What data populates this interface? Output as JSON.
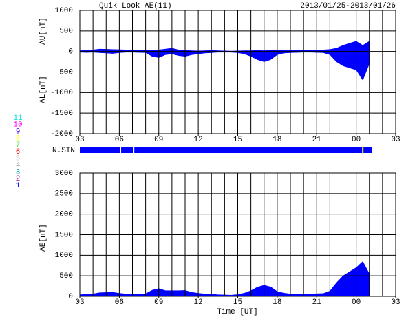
{
  "chart_data": [
    {
      "type": "area",
      "title": "Quik Look AE(11)",
      "subtitle": "2013/01/25-2013/01/26",
      "y_labels": [
        "AU[nT]",
        "AL[nT]"
      ],
      "x": [
        3,
        3.5,
        4,
        4.5,
        5,
        5.5,
        6,
        6.5,
        7,
        7.5,
        8,
        8.5,
        9,
        9.5,
        10,
        10.5,
        11,
        11.5,
        12,
        12.5,
        13,
        13.5,
        14,
        14.5,
        15,
        15.5,
        16,
        16.5,
        17,
        17.5,
        18,
        18.5,
        19,
        19.5,
        20,
        20.5,
        21,
        21.5,
        22,
        22.5,
        23,
        23.5,
        24,
        24.5,
        25
      ],
      "series": [
        {
          "name": "AU",
          "color": "#0000ff",
          "values": [
            20,
            25,
            40,
            60,
            55,
            50,
            45,
            40,
            35,
            30,
            35,
            30,
            40,
            60,
            80,
            40,
            25,
            20,
            15,
            20,
            25,
            20,
            15,
            10,
            15,
            20,
            20,
            25,
            20,
            30,
            40,
            40,
            30,
            35,
            30,
            40,
            40,
            40,
            50,
            80,
            150,
            200,
            250,
            150,
            250
          ]
        },
        {
          "name": "AL",
          "color": "#0000ff",
          "values": [
            -20,
            -25,
            -20,
            -30,
            -40,
            -50,
            -30,
            -20,
            -20,
            -25,
            -30,
            -120,
            -150,
            -80,
            -60,
            -100,
            -120,
            -80,
            -60,
            -40,
            -30,
            -20,
            -20,
            -20,
            -30,
            -60,
            -120,
            -200,
            -250,
            -200,
            -80,
            -40,
            -30,
            -25,
            -20,
            -20,
            -25,
            -30,
            -80,
            -250,
            -350,
            -400,
            -450,
            -700,
            -300
          ]
        }
      ],
      "xlim": [
        3,
        27
      ],
      "xticks": [
        {
          "value": 3,
          "label": "03"
        },
        {
          "value": 6,
          "label": "06"
        },
        {
          "value": 9,
          "label": "09"
        },
        12,
        15,
        18,
        21,
        {
          "value": 24,
          "label": "00"
        },
        {
          "value": 27,
          "label": "03"
        }
      ],
      "ylim": [
        -2000,
        1000
      ],
      "yticks": [
        1000,
        500,
        0,
        -500,
        -1000,
        -1500,
        -2000
      ],
      "grid": true,
      "x_grid_step": 1
    },
    {
      "type": "station",
      "label": "N.STN",
      "color": "#0000ff",
      "span": [
        3,
        25.2
      ],
      "gaps": [
        6.1,
        7.1
      ],
      "markers": [
        24.5
      ],
      "marker_color": "#ffff00",
      "xlim": [
        3,
        27
      ],
      "stations": [
        {
          "name": "11",
          "color": "#00e0e0"
        },
        {
          "name": "10",
          "color": "#ff00ff"
        },
        {
          "name": "9",
          "color": "#4000ff"
        },
        {
          "name": "8",
          "color": "#ffff00"
        },
        {
          "name": "7",
          "color": "#60e060"
        },
        {
          "name": "6",
          "color": "#ff0000"
        },
        {
          "name": "5",
          "color": "#c8c8c8"
        },
        {
          "name": "4",
          "color": "#a0a0a0"
        },
        {
          "name": "3",
          "color": "#00a0a0"
        },
        {
          "name": "2",
          "color": "#a000a0"
        },
        {
          "name": "1",
          "color": "#0000ff"
        }
      ]
    },
    {
      "type": "area",
      "y_labels": [
        "AE[nT]"
      ],
      "x_label": "Time [UT]",
      "x": [
        3,
        3.5,
        4,
        4.5,
        5,
        5.5,
        6,
        6.5,
        7,
        7.5,
        8,
        8.5,
        9,
        9.5,
        10,
        10.5,
        11,
        11.5,
        12,
        12.5,
        13,
        13.5,
        14,
        14.5,
        15,
        15.5,
        16,
        16.5,
        17,
        17.5,
        18,
        18.5,
        19,
        19.5,
        20,
        20.5,
        21,
        21.5,
        22,
        22.5,
        23,
        23.5,
        24,
        24.5,
        25
      ],
      "series": [
        {
          "name": "AE",
          "color": "#0000ff",
          "values": [
            40,
            50,
            60,
            90,
            95,
            100,
            75,
            60,
            55,
            55,
            65,
            150,
            190,
            140,
            140,
            140,
            145,
            100,
            75,
            60,
            55,
            40,
            35,
            30,
            45,
            80,
            140,
            225,
            270,
            230,
            120,
            80,
            60,
            60,
            50,
            60,
            65,
            70,
            130,
            330,
            500,
            600,
            700,
            850,
            550
          ]
        }
      ],
      "xlim": [
        3,
        27
      ],
      "xticks": [
        {
          "value": 3,
          "label": "03"
        },
        {
          "value": 6,
          "label": "06"
        },
        {
          "value": 9,
          "label": "09"
        },
        12,
        15,
        18,
        21,
        {
          "value": 24,
          "label": "00"
        },
        {
          "value": 27,
          "label": "03"
        }
      ],
      "ylim": [
        0,
        3000
      ],
      "yticks": [
        0,
        500,
        1000,
        1500,
        2000,
        2500,
        3000
      ],
      "grid": true,
      "x_grid_step": 1
    }
  ]
}
